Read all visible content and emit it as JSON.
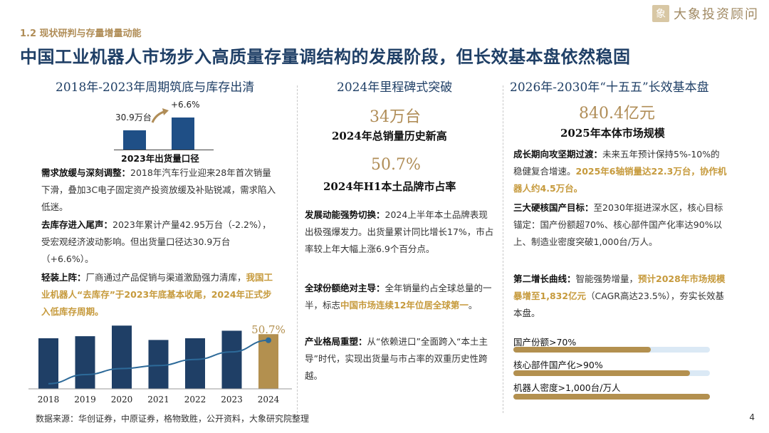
{
  "header": {
    "section_label": "1.2 现状研判与存量增量动能",
    "title": "中国工业机器人市场步入高质量存量调结构的发展阶段，但长效基本盘依然稳固",
    "brand": "大象投资顾问"
  },
  "col1": {
    "heading": "2018年-2023年周期筑底与库存出清",
    "small_chart": {
      "value_label": "30.9万台",
      "growth_label": "+6.6%",
      "caption": "2023年出货量口径"
    },
    "paragraphs": [
      {
        "bold": "需求放缓与深刻调整：",
        "text": "2018年汽车行业迎来28年首次销量下滑，叠加3C电子固定资产投资放缓及补贴锐减，需求陷入低迷。",
        "highlight": ""
      },
      {
        "bold": "去库存进入尾声：",
        "text": "2023年累计产量42.95万台（-2.2%），受宏观经济波动影响。但出货量口径达30.9万台（+6.6%）。",
        "highlight": ""
      },
      {
        "bold": "轻装上阵：",
        "text": "厂商通过产品促销与渠道激励强力清库，",
        "highlight": "我国工业机器人“去库存”于2023年底基本收尾，2024年正式步入低库存周期。"
      }
    ]
  },
  "col2": {
    "heading": "2024年里程碑式突破",
    "stat1_value": "34万台",
    "stat1_label": "2024年总销量历史新高",
    "stat2_value": "50.7%",
    "stat2_label": "2024年H1本土品牌市占率",
    "paragraphs": [
      {
        "bold": "发展动能强势切换：",
        "text": "2024上半年本土品牌表现出极强爆发力。出货量累计同比增长17%，市占率较上年大幅上涨6.9个百分点。",
        "highlight": "",
        "tail": ""
      },
      {
        "bold": "全球份额绝对主导：",
        "text": "全年销量约占全球总量的一半，标志",
        "highlight": "中国市场连续12年位居全球第一",
        "tail": "。"
      },
      {
        "bold": "产业格局重塑：",
        "text": "从“依赖进口”全面跨入“本土主导”时代，实现出货量与市占率的双重历史性跨越。",
        "highlight": "",
        "tail": ""
      }
    ]
  },
  "col3": {
    "heading": "2026年-2030年“十五五”长效基本盘",
    "big_value": "840.4亿元",
    "big_label": "2025年本体市场规模",
    "paragraphs": [
      {
        "bold": "成长期向攻坚期过渡：",
        "text": "未来五年预计保持5%-10%的稳健复合增速。",
        "highlight": "2025年6轴销量达22.3万台，协作机器人约4.5万台。",
        "tail": ""
      },
      {
        "bold": "三大硬核国产目标：",
        "text": "至2030年挺进深水区，核心目标锚定：国产份额超70%、核心部件国产化率达90%以上、制造业密度突破1,000台/万人。",
        "highlight": "",
        "tail": ""
      },
      {
        "bold": "第二增长曲线：",
        "text": "智能强势增量，",
        "highlight": "预计2028年市场规模暴增至1,832亿元",
        "tail": "（CAGR高达23.5%），夯实长效基本盘。"
      }
    ],
    "progress": [
      {
        "label": "国产份额>70%",
        "value": 0.7
      },
      {
        "label": "核心部件国产化>90%",
        "value": 0.9
      },
      {
        "label": "机器人密度>1,000台/万人",
        "value": 1.0
      }
    ]
  },
  "chart_data": {
    "type": "bar",
    "categories": [
      "2018",
      "2019",
      "2020",
      "2021",
      "2022",
      "2023",
      "2024"
    ],
    "series": [
      {
        "values": [
          14.8,
          15.4,
          18.5,
          14.3,
          14.8,
          17.0,
          16.0
        ],
        "type": "bar"
      },
      {
        "values": [
          22,
          28,
          32,
          34,
          38,
          43,
          50.7
        ],
        "type": "line"
      }
    ],
    "annotation": "50.7%",
    "highlight_category": "2024",
    "colors": {
      "bar": "#1f3f66",
      "highlight": "#b3904f",
      "line": "#2d6a99"
    }
  },
  "footer": {
    "source": "数据来源：华创证券，中原证券，格物致胜，公开资料，大象研究院整理",
    "page": "4"
  }
}
